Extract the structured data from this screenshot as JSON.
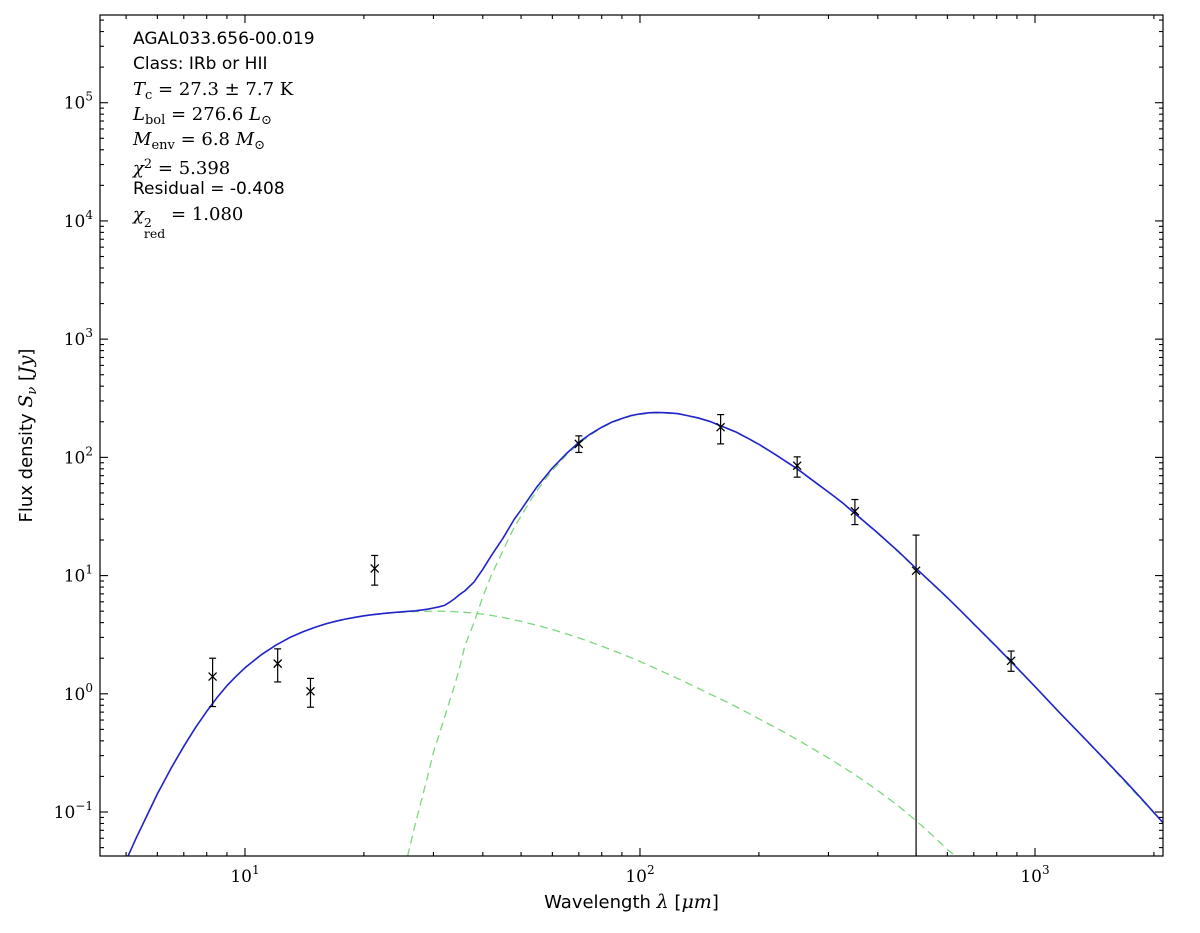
{
  "figure": {
    "source_name": "AGAL033.656-00.019",
    "classification": "Class: IRb or HII",
    "parameters": {
      "T_c": "27.3 ± 7.7 K",
      "L_bol": "276.6 L⊙",
      "M_env": "6.8 M⊙",
      "chi2": "5.398",
      "residual": "-0.408",
      "chi2_red": "1.080"
    }
  },
  "chart_data": {
    "type": "line",
    "title": "",
    "xlabel": "Wavelength λ [μm]",
    "ylabel": "Flux density Sν [Jy]",
    "x_scale": "log",
    "y_scale": "log",
    "xlim": [
      4.295,
      2109
    ],
    "ylim": [
      0.04246,
      552000
    ],
    "grid": false,
    "legend": "none",
    "x_major_tick_exponents": [
      1,
      2,
      3
    ],
    "y_major_tick_exponents": [
      -1,
      0,
      1,
      2,
      3,
      4,
      5
    ],
    "colors": {
      "total": "#2222cc",
      "components": "#7cd87c",
      "data": "#000000"
    },
    "xlabel_parts": [
      {
        "t": "Wavelength ",
        "s": "sans"
      },
      {
        "t": "λ",
        "s": "it"
      },
      {
        "t": " [",
        "s": "sans"
      },
      {
        "t": "μm",
        "s": "it"
      },
      {
        "t": "]",
        "s": "sans"
      }
    ],
    "ylabel_parts": [
      {
        "t": "Flux density ",
        "s": "sans"
      },
      {
        "t": "S",
        "s": "it"
      },
      {
        "t": "ν",
        "s": "itsub"
      },
      {
        "t": " [",
        "s": "sans"
      },
      {
        "t": "Jy",
        "s": "it"
      },
      {
        "t": "]",
        "s": "sans"
      }
    ],
    "annotation_lines": [
      [
        {
          "t": "AGAL033.656-00.019",
          "s": "sans"
        }
      ],
      [
        {
          "t": "Class: IRb or HII",
          "s": "sans"
        }
      ],
      [
        {
          "t": "T",
          "s": "it"
        },
        {
          "t": "c",
          "s": "sub"
        },
        {
          "t": " = 27.3 ± 7.7 K",
          "s": "rm"
        }
      ],
      [
        {
          "t": "L",
          "s": "it"
        },
        {
          "t": "bol",
          "s": "sub"
        },
        {
          "t": " = 276.6 ",
          "s": "rm"
        },
        {
          "t": "L",
          "s": "it"
        },
        {
          "t": "⊙",
          "s": "sub"
        }
      ],
      [
        {
          "t": "M",
          "s": "it"
        },
        {
          "t": "env",
          "s": "sub"
        },
        {
          "t": " = 6.8 ",
          "s": "rm"
        },
        {
          "t": "M",
          "s": "it"
        },
        {
          "t": "⊙",
          "s": "sub"
        }
      ],
      [
        {
          "t": "χ",
          "s": "it"
        },
        {
          "t": "2",
          "s": "sup"
        },
        {
          "t": " = 5.398",
          "s": "rm"
        }
      ],
      [
        {
          "t": "Residual = -0.408",
          "s": "sans"
        }
      ],
      [
        {
          "t": "χ",
          "s": "it"
        },
        {
          "t": "2|red",
          "s": "supsub"
        },
        {
          "t": " = 1.080",
          "s": "rm"
        }
      ]
    ],
    "series": [
      {
        "name": "cold-component",
        "color_key": "components",
        "style": "dashed",
        "width": 1.3,
        "points": [
          [
            25.8,
            0.0424
          ],
          [
            27,
            0.08
          ],
          [
            28,
            0.127
          ],
          [
            29,
            0.2
          ],
          [
            30,
            0.32
          ],
          [
            31,
            0.45
          ],
          [
            32,
            0.63
          ],
          [
            33,
            0.88
          ],
          [
            34,
            1.2
          ],
          [
            35,
            1.7
          ],
          [
            36,
            2.52
          ],
          [
            38,
            4.0
          ],
          [
            40,
            6.6
          ],
          [
            42,
            10
          ],
          [
            45,
            16.3
          ],
          [
            48,
            25.6
          ],
          [
            50,
            31.9
          ],
          [
            53,
            44
          ],
          [
            55,
            53.2
          ],
          [
            58,
            67
          ],
          [
            60,
            77.8
          ],
          [
            65,
            104
          ],
          [
            70,
            131
          ],
          [
            75,
            155
          ],
          [
            80,
            178
          ],
          [
            85,
            197
          ],
          [
            90,
            211
          ],
          [
            95,
            224
          ],
          [
            100,
            231
          ],
          [
            105,
            236
          ],
          [
            110,
            238
          ],
          [
            118,
            236
          ],
          [
            125,
            233
          ],
          [
            130,
            227
          ],
          [
            140,
            215
          ],
          [
            150,
            201
          ],
          [
            160,
            184
          ],
          [
            175,
            163
          ],
          [
            190,
            141
          ],
          [
            200,
            128
          ],
          [
            220,
            105.5
          ],
          [
            250,
            79.4
          ],
          [
            280,
            60
          ],
          [
            300,
            50.6
          ],
          [
            325,
            41.2
          ],
          [
            350,
            33.3
          ],
          [
            400,
            22.7
          ],
          [
            450,
            15.9
          ],
          [
            500,
            11.4
          ],
          [
            560,
            8.0
          ],
          [
            600,
            6.45
          ],
          [
            650,
            5.0
          ],
          [
            700,
            3.87
          ],
          [
            800,
            2.47
          ],
          [
            870,
            1.85
          ],
          [
            1000,
            1.15
          ],
          [
            1150,
            0.7
          ],
          [
            1300,
            0.456
          ],
          [
            1500,
            0.277
          ],
          [
            1700,
            0.176
          ],
          [
            1900,
            0.118
          ],
          [
            2110,
            0.081
          ]
        ]
      },
      {
        "name": "warm-component",
        "color_key": "components",
        "style": "dashed",
        "width": 1.3,
        "points": [
          [
            5.05,
            0.042
          ],
          [
            5.3,
            0.06
          ],
          [
            5.6,
            0.088
          ],
          [
            6,
            0.142
          ],
          [
            6.5,
            0.235
          ],
          [
            7,
            0.36
          ],
          [
            7.5,
            0.52
          ],
          [
            8,
            0.71
          ],
          [
            8.5,
            0.93
          ],
          [
            9,
            1.17
          ],
          [
            9.5,
            1.41
          ],
          [
            10,
            1.66
          ],
          [
            11,
            2.14
          ],
          [
            12,
            2.59
          ],
          [
            13,
            3.0
          ],
          [
            14,
            3.34
          ],
          [
            15,
            3.64
          ],
          [
            16,
            3.89
          ],
          [
            17,
            4.1
          ],
          [
            18,
            4.28
          ],
          [
            19,
            4.43
          ],
          [
            20,
            4.55
          ],
          [
            21,
            4.65
          ],
          [
            22,
            4.73
          ],
          [
            23.5,
            4.83
          ],
          [
            25,
            4.9
          ],
          [
            27,
            4.96
          ],
          [
            29,
            4.99
          ],
          [
            31,
            5.0
          ],
          [
            33,
            4.97
          ],
          [
            35,
            4.93
          ],
          [
            38,
            4.82
          ],
          [
            41,
            4.67
          ],
          [
            45,
            4.43
          ],
          [
            50,
            4.1
          ],
          [
            55,
            3.79
          ],
          [
            60,
            3.5
          ],
          [
            65,
            3.22
          ],
          [
            70,
            2.97
          ],
          [
            80,
            2.53
          ],
          [
            90,
            2.17
          ],
          [
            100,
            1.88
          ],
          [
            115,
            1.52
          ],
          [
            130,
            1.26
          ],
          [
            150,
            1.0
          ],
          [
            170,
            0.82
          ],
          [
            200,
            0.615
          ],
          [
            230,
            0.48
          ],
          [
            260,
            0.38
          ],
          [
            300,
            0.287
          ],
          [
            350,
            0.207
          ],
          [
            400,
            0.152
          ],
          [
            450,
            0.113
          ],
          [
            500,
            0.0845
          ],
          [
            550,
            0.0635
          ],
          [
            600,
            0.048
          ],
          [
            630,
            0.0425
          ]
        ]
      },
      {
        "name": "total-model",
        "color_key": "total",
        "style": "solid",
        "width": 1.6,
        "points": [
          [
            5.05,
            0.042
          ],
          [
            5.3,
            0.06
          ],
          [
            5.6,
            0.088
          ],
          [
            6,
            0.142
          ],
          [
            6.5,
            0.235
          ],
          [
            7,
            0.36
          ],
          [
            7.5,
            0.52
          ],
          [
            8,
            0.71
          ],
          [
            8.5,
            0.93
          ],
          [
            9,
            1.17
          ],
          [
            9.5,
            1.41
          ],
          [
            10,
            1.66
          ],
          [
            11,
            2.14
          ],
          [
            12,
            2.59
          ],
          [
            13,
            3.0
          ],
          [
            14,
            3.34
          ],
          [
            15,
            3.64
          ],
          [
            16,
            3.9
          ],
          [
            17,
            4.11
          ],
          [
            18,
            4.29
          ],
          [
            19,
            4.44
          ],
          [
            20,
            4.57
          ],
          [
            21,
            4.67
          ],
          [
            22,
            4.75
          ],
          [
            23.5,
            4.85
          ],
          [
            25,
            4.94
          ],
          [
            27,
            5.04
          ],
          [
            29,
            5.2
          ],
          [
            30,
            5.32
          ],
          [
            31,
            5.44
          ],
          [
            32,
            5.6
          ],
          [
            33,
            5.97
          ],
          [
            34,
            6.4
          ],
          [
            35,
            6.95
          ],
          [
            36,
            7.4
          ],
          [
            38,
            8.8
          ],
          [
            40,
            11.3
          ],
          [
            42,
            14.7
          ],
          [
            45,
            20.7
          ],
          [
            48,
            29.8
          ],
          [
            50,
            36
          ],
          [
            53,
            47.9
          ],
          [
            55,
            57
          ],
          [
            58,
            70.6
          ],
          [
            60,
            81.3
          ],
          [
            65,
            107
          ],
          [
            70,
            134
          ],
          [
            75,
            158
          ],
          [
            80,
            180
          ],
          [
            85,
            199
          ],
          [
            90,
            213
          ],
          [
            95,
            226
          ],
          [
            100,
            233
          ],
          [
            105,
            238
          ],
          [
            110,
            240
          ],
          [
            118,
            238
          ],
          [
            125,
            234
          ],
          [
            130,
            228
          ],
          [
            140,
            216
          ],
          [
            150,
            202
          ],
          [
            160,
            185
          ],
          [
            175,
            164
          ],
          [
            190,
            142
          ],
          [
            200,
            129
          ],
          [
            220,
            106
          ],
          [
            250,
            80
          ],
          [
            280,
            60.3
          ],
          [
            300,
            50.9
          ],
          [
            325,
            41.5
          ],
          [
            350,
            33.5
          ],
          [
            400,
            22.9
          ],
          [
            450,
            16.1
          ],
          [
            500,
            11.5
          ],
          [
            560,
            8.1
          ],
          [
            600,
            6.5
          ],
          [
            650,
            5.0
          ],
          [
            700,
            3.9
          ],
          [
            800,
            2.5
          ],
          [
            870,
            1.87
          ],
          [
            1000,
            1.15
          ],
          [
            1150,
            0.7
          ],
          [
            1300,
            0.46
          ],
          [
            1500,
            0.28
          ],
          [
            1700,
            0.18
          ],
          [
            1900,
            0.12
          ],
          [
            2110,
            0.081
          ]
        ]
      }
    ],
    "data_points": [
      {
        "wavelength": 8.28,
        "flux": 1.4,
        "upper": 2.0,
        "lower": 0.78
      },
      {
        "wavelength": 12.1,
        "flux": 1.8,
        "upper": 2.4,
        "lower": 1.26
      },
      {
        "wavelength": 14.65,
        "flux": 1.05,
        "upper": 1.35,
        "lower": 0.77
      },
      {
        "wavelength": 21.3,
        "flux": 11.5,
        "upper": 14.8,
        "lower": 8.3
      },
      {
        "wavelength": 70,
        "flux": 130,
        "upper": 152,
        "lower": 110
      },
      {
        "wavelength": 160,
        "flux": 180,
        "upper": 230,
        "lower": 130
      },
      {
        "wavelength": 250,
        "flux": 85,
        "upper": 101,
        "lower": 68
      },
      {
        "wavelength": 350,
        "flux": 35,
        "upper": 44,
        "lower": 27
      },
      {
        "wavelength": 500,
        "flux": 11,
        "upper": 22,
        "lower": 0.02
      },
      {
        "wavelength": 870,
        "flux": 1.9,
        "upper": 2.3,
        "lower": 1.55
      }
    ]
  }
}
